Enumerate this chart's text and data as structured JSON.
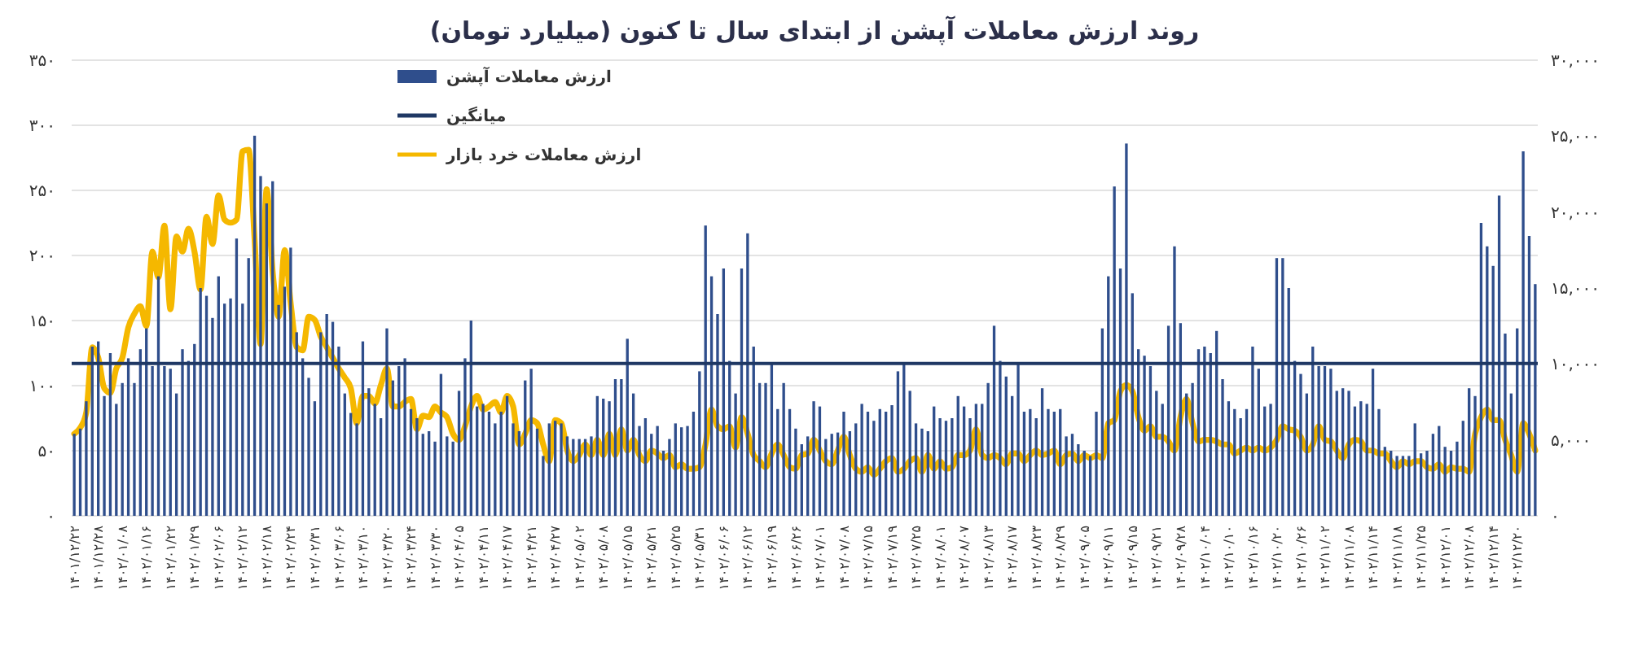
{
  "chart_data": {
    "type": "bar",
    "title": "روند ارزش معاملات آپشن از ابتدای سال تا کنون (میلیارد تومان)",
    "categories": [
      "۱۴۰۱/۱۲/۲۲",
      null,
      null,
      null,
      "۱۴۰۱/۱۲/۲۸",
      null,
      null,
      null,
      "۱۴۰۲/۰۱/۰۸",
      null,
      null,
      null,
      "۱۴۰۲/۰۱/۱۶",
      null,
      null,
      null,
      "۱۴۰۲/۰۱/۲۲",
      null,
      null,
      null,
      "۱۴۰۲/۰۱/۲۹",
      null,
      null,
      null,
      "۱۴۰۲/۰۲/۰۶",
      null,
      null,
      null,
      "۱۴۰۲/۰۲/۱۲",
      null,
      null,
      null,
      "۱۴۰۲/۰۲/۱۸",
      null,
      null,
      null,
      "۱۴۰۲/۰۲/۲۴",
      null,
      null,
      null,
      "۱۴۰۲/۰۲/۳۱",
      null,
      null,
      null,
      "۱۴۰۲/۰۳/۰۶",
      null,
      null,
      null,
      "۱۴۰۲/۰۳/۱۰",
      null,
      null,
      null,
      "۱۴۰۲/۰۳/۲۰",
      null,
      null,
      null,
      "۱۴۰۲/۰۳/۲۴",
      null,
      null,
      null,
      "۱۴۰۲/۰۳/۳۰",
      null,
      null,
      null,
      "۱۴۰۲/۰۴/۰۵",
      null,
      null,
      null,
      "۱۴۰۲/۰۴/۱۱",
      null,
      null,
      null,
      "۱۴۰۲/۰۴/۱۷",
      null,
      null,
      null,
      "۱۴۰۲/۰۴/۲۱",
      null,
      null,
      null,
      "۱۴۰۲/۰۴/۲۷",
      null,
      null,
      null,
      "۱۴۰۲/۰۵/۰۲",
      null,
      null,
      null,
      "۱۴۰۲/۰۵/۰۸",
      null,
      null,
      null,
      "۱۴۰۲/۰۵/۱۵",
      null,
      null,
      null,
      "۱۴۰۲/۰۵/۲۱",
      null,
      null,
      null,
      "۱۴۰۲/۰۵/۲۵",
      null,
      null,
      null,
      "۱۴۰۲/۰۵/۳۱",
      null,
      null,
      null,
      "۱۴۰۲/۰۶/۰۶",
      null,
      null,
      null,
      "۱۴۰۲/۰۶/۱۲",
      null,
      null,
      null,
      "۱۴۰۲/۰۶/۱۹",
      null,
      null,
      null,
      "۱۴۰۲/۰۶/۲۶",
      null,
      null,
      null,
      "۱۴۰۲/۰۷/۰۱",
      null,
      null,
      null,
      "۱۴۰۲/۰۷/۰۸",
      null,
      null,
      null,
      "۱۴۰۲/۰۷/۱۵",
      null,
      null,
      null,
      "۱۴۰۲/۰۷/۱۹",
      null,
      null,
      null,
      "۱۴۰۲/۰۷/۲۵",
      null,
      null,
      null,
      "۱۴۰۲/۰۸/۰۱",
      null,
      null,
      null,
      "۱۴۰۲/۰۸/۰۷",
      null,
      null,
      null,
      "۱۴۰۲/۰۸/۱۳",
      null,
      null,
      null,
      "۱۴۰۲/۰۸/۱۷",
      null,
      null,
      null,
      "۱۴۰۲/۰۸/۲۳",
      null,
      null,
      null,
      "۱۴۰۲/۰۸/۲۹",
      null,
      null,
      null,
      "۱۴۰۲/۰۹/۰۵",
      null,
      null,
      null,
      "۱۴۰۲/۰۹/۱۱",
      null,
      null,
      null,
      "۱۴۰۲/۰۹/۱۵",
      null,
      null,
      null,
      "۱۴۰۲/۰۹/۲۱",
      null,
      null,
      null,
      "۱۴۰۲/۰۹/۲۸",
      null,
      null,
      null,
      "۱۴۰۲/۱۰/۰۴",
      null,
      null,
      null,
      "۱۴۰۲/۱۰/۱۰",
      null,
      null,
      null,
      "۱۴۰۲/۱۰/۱۶",
      null,
      null,
      null,
      "۱۴۰۲/۱۰/۲۰",
      null,
      null,
      null,
      "۱۴۰۲/۱۰/۲۶",
      null,
      null,
      null,
      "۱۴۰۲/۱۱/۰۲",
      null,
      null,
      null,
      "۱۴۰۲/۱۱/۰۸",
      null,
      null,
      null,
      "۱۴۰۲/۱۱/۱۴",
      null,
      null,
      null,
      "۱۴۰۲/۱۱/۱۸",
      null,
      null,
      null,
      "۱۴۰۲/۱۱/۲۵",
      null,
      null,
      null,
      "۱۴۰۲/۱۲/۰۱",
      null,
      null,
      null,
      "۱۴۰۲/۱۲/۰۸",
      null,
      null,
      null,
      "۱۴۰۲/۱۲/۱۴",
      null,
      null,
      null,
      "۱۴۰۲/۱۲/۲۰",
      null,
      null,
      null
    ],
    "series": [
      {
        "name": "ارزش معاملات آپشن",
        "color": "#2f4e8c",
        "values": [
          63,
          67,
          88,
          130,
          134,
          92,
          125,
          86,
          102,
          121,
          102,
          128,
          144,
          115,
          184,
          115,
          113,
          94,
          128,
          119,
          132,
          175,
          169,
          152,
          184,
          163,
          167,
          213,
          163,
          198,
          292,
          261,
          240,
          257,
          162,
          176,
          206,
          141,
          121,
          106,
          88,
          141,
          155,
          149,
          130,
          94,
          79,
          71,
          134,
          98,
          86,
          75,
          144,
          104,
          115,
          121,
          82,
          75,
          63,
          65,
          57,
          109,
          61,
          57,
          96,
          121,
          150,
          84,
          86,
          80,
          71,
          80,
          92,
          71,
          65,
          104,
          113,
          67,
          46,
          71,
          73,
          71,
          61,
          59,
          59,
          59,
          61,
          92,
          90,
          88,
          105,
          105,
          136,
          94,
          69,
          75,
          63,
          69,
          50,
          59,
          71,
          68,
          69,
          80,
          111,
          223,
          184,
          155,
          190,
          119,
          94,
          190,
          217,
          130,
          102,
          102,
          117,
          82,
          102,
          82,
          67,
          55,
          61,
          88,
          84,
          59,
          63,
          64,
          80,
          65,
          71,
          86,
          80,
          73,
          82,
          80,
          85,
          111,
          117,
          96,
          71,
          67,
          65,
          84,
          75,
          73,
          75,
          92,
          84,
          75,
          86,
          86,
          102,
          146,
          119,
          107,
          92,
          117,
          80,
          82,
          75,
          98,
          82,
          80,
          82,
          61,
          63,
          55,
          50,
          46,
          80,
          144,
          184,
          253,
          190,
          286,
          171,
          128,
          123,
          115,
          96,
          86,
          146,
          207,
          148,
          94,
          102,
          128,
          130,
          125,
          142,
          105,
          88,
          82,
          75,
          82,
          130,
          113,
          84,
          86,
          198,
          198,
          175,
          119,
          109,
          94,
          130,
          115,
          115,
          113,
          96,
          98,
          96,
          84,
          88,
          86,
          113,
          82,
          53,
          50,
          46,
          46,
          46,
          71,
          48,
          50,
          63,
          69,
          53,
          50,
          57,
          73,
          98,
          92,
          225,
          207,
          192,
          246,
          140,
          94,
          144,
          280,
          215,
          178
        ]
      },
      {
        "name": "ارزش معاملات خرد بازار",
        "type": "line",
        "axis": "y2",
        "color": "#f5b800",
        "values": [
          5400,
          5800,
          6800,
          11100,
          10400,
          8400,
          8100,
          9700,
          10400,
          12400,
          13300,
          13800,
          12500,
          17400,
          15700,
          19100,
          13600,
          18400,
          17400,
          18900,
          17400,
          14900,
          19700,
          17900,
          21100,
          19500,
          19300,
          19500,
          24000,
          24100,
          18200,
          11300,
          21500,
          16100,
          13100,
          17500,
          14000,
          11100,
          10900,
          13100,
          12900,
          11800,
          11100,
          10400,
          9700,
          9100,
          8400,
          6100,
          7900,
          7900,
          7400,
          8600,
          9700,
          7200,
          7200,
          7500,
          7700,
          5700,
          6600,
          6500,
          7200,
          6800,
          6500,
          5400,
          5000,
          5900,
          7200,
          7900,
          7000,
          7200,
          7500,
          6800,
          7900,
          7200,
          4700,
          5400,
          6300,
          6100,
          4700,
          3600,
          6300,
          6100,
          4300,
          3600,
          4000,
          4700,
          4000,
          5000,
          4000,
          5400,
          4000,
          5700,
          4300,
          5000,
          4000,
          3600,
          4300,
          4100,
          3800,
          4000,
          3200,
          3400,
          3100,
          3100,
          3200,
          4700,
          7000,
          5900,
          5700,
          5900,
          4500,
          6500,
          5400,
          4000,
          3600,
          3200,
          4100,
          4700,
          4000,
          3200,
          3100,
          4000,
          4100,
          5000,
          4300,
          3600,
          3400,
          4300,
          5200,
          4000,
          3100,
          2900,
          3200,
          2700,
          3100,
          3600,
          3800,
          2900,
          3100,
          3600,
          3800,
          2900,
          4000,
          3100,
          3600,
          3100,
          3200,
          4000,
          4000,
          4300,
          5700,
          4000,
          3800,
          4000,
          3800,
          3400,
          4100,
          4100,
          3600,
          4000,
          4300,
          4000,
          4100,
          4300,
          3400,
          4000,
          4100,
          3600,
          4000,
          3800,
          4000,
          3800,
          6100,
          6300,
          8200,
          8600,
          8200,
          6500,
          5600,
          5900,
          5200,
          5200,
          4900,
          4300,
          6500,
          7700,
          6100,
          4900,
          5000,
          5000,
          4900,
          4700,
          4700,
          4100,
          4300,
          4500,
          4300,
          4500,
          4300,
          4500,
          5000,
          5900,
          5700,
          5600,
          5200,
          4300,
          4700,
          5900,
          5000,
          4900,
          4300,
          3800,
          4700,
          5000,
          4900,
          4300,
          4300,
          4100,
          4100,
          3600,
          3200,
          3600,
          3400,
          3600,
          3600,
          3200,
          3100,
          3400,
          2900,
          3200,
          3100,
          3100,
          2900,
          5400,
          6500,
          7000,
          6300,
          6300,
          5000,
          4000,
          2900,
          6100,
          5400,
          4300
        ]
      }
    ],
    "ylim": [
      0,
      350
    ],
    "yticks": [
      {
        "value": 0,
        "label": "۰"
      },
      {
        "value": 50,
        "label": "۵۰"
      },
      {
        "value": 100,
        "label": "۱۰۰"
      },
      {
        "value": 150,
        "label": "۱۵۰"
      },
      {
        "value": 200,
        "label": "۲۰۰"
      },
      {
        "value": 250,
        "label": "۲۵۰"
      },
      {
        "value": 300,
        "label": "۳۰۰"
      },
      {
        "value": 350,
        "label": "۳۵۰"
      }
    ],
    "y2lim": [
      0,
      30000
    ],
    "y2ticks": [
      {
        "value": 0,
        "label": "۰"
      },
      {
        "value": 5000,
        "label": "۵,۰۰۰"
      },
      {
        "value": 10000,
        "label": "۱۰,۰۰۰"
      },
      {
        "value": 15000,
        "label": "۱۵,۰۰۰"
      },
      {
        "value": 20000,
        "label": "۲۰,۰۰۰"
      },
      {
        "value": 25000,
        "label": "۲۵,۰۰۰"
      },
      {
        "value": 30000,
        "label": "۳۰,۰۰۰"
      }
    ],
    "ref_lines": [
      {
        "axis": "y",
        "value": 117,
        "label": "میانگین",
        "color": "#1f3864"
      }
    ],
    "grid": "y",
    "legend": "top left"
  }
}
